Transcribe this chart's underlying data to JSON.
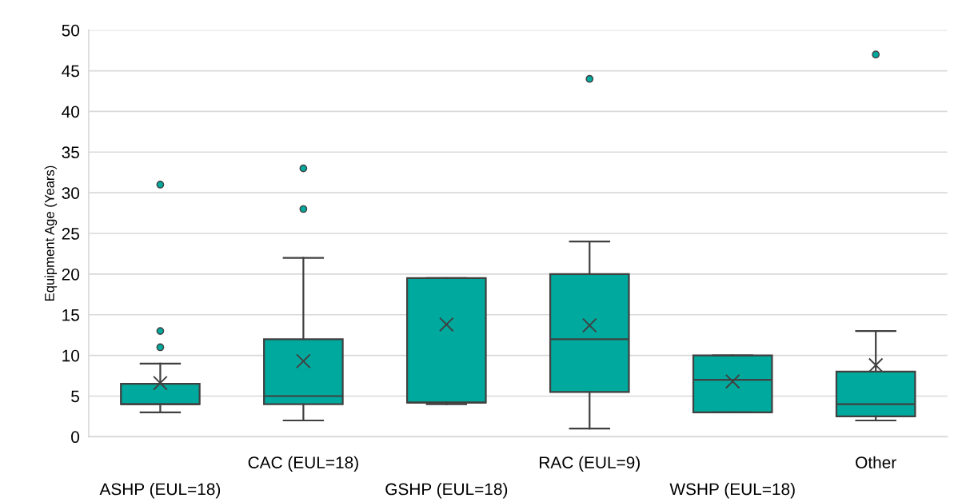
{
  "chart_data": {
    "type": "box",
    "ylabel": "Equipment Age (Years)",
    "categories": [
      "ASHP (EUL=18)",
      "CAC (EUL=18)",
      "GSHP (EUL=18)",
      "RAC (EUL=9)",
      "WSHP (EUL=18)",
      "Other"
    ],
    "color": "#00a99d",
    "boxes": [
      {
        "low": 3,
        "q1": 4,
        "median": 4,
        "q3": 6.5,
        "high": 9,
        "mean": 6.6,
        "outliers": [
          11,
          13,
          31
        ]
      },
      {
        "low": 2,
        "q1": 4,
        "median": 5,
        "q3": 12,
        "high": 22,
        "mean": 9.3,
        "outliers": [
          28,
          33
        ]
      },
      {
        "low": 4,
        "q1": 4.2,
        "median": 4.2,
        "q3": 19.5,
        "high": 19.5,
        "mean": 13.8
      },
      {
        "low": 1,
        "q1": 5.5,
        "median": 12,
        "q3": 20,
        "high": 24,
        "mean": 13.7,
        "outliers": [
          44
        ]
      },
      {
        "low": 3,
        "q1": 3,
        "median": 7,
        "q3": 10,
        "high": 10,
        "mean": 6.8
      },
      {
        "low": 2,
        "q1": 2.5,
        "median": 4,
        "q3": 8,
        "high": 13,
        "mean": 8.8,
        "outliers": [
          47
        ]
      }
    ],
    "ylim": [
      0,
      50
    ],
    "yticks": [
      0,
      5,
      10,
      15,
      20,
      25,
      30,
      35,
      40,
      45,
      50
    ],
    "grid": "y"
  }
}
